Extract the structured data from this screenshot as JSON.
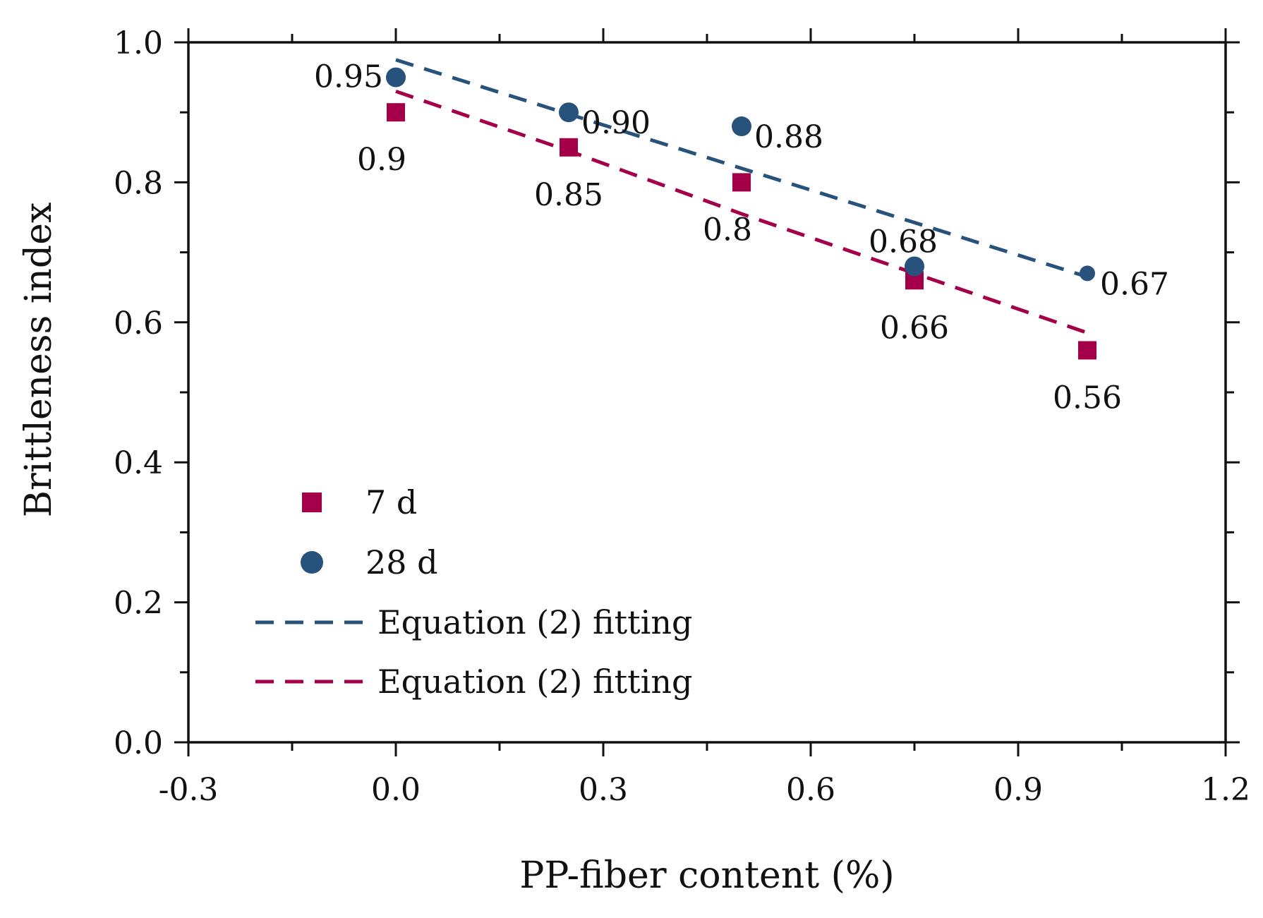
{
  "colors": {
    "series_7d": "#A4004A",
    "series_28d": "#26527B",
    "axis": "#111111"
  },
  "chart_data": {
    "type": "scatter",
    "title": "",
    "xlabel": "PP-fiber content (%)",
    "ylabel": "Brittleness index",
    "xlim": [
      -0.3,
      1.2
    ],
    "ylim": [
      0.0,
      1.0
    ],
    "x_ticks": [
      -0.3,
      0.0,
      0.3,
      0.6,
      0.9,
      1.2
    ],
    "x_tick_labels": [
      "-0.3",
      "0.0",
      "0.3",
      "0.6",
      "0.9",
      "1.2"
    ],
    "x_minor_ticks": [
      -0.15,
      0.15,
      0.45,
      0.75,
      1.05
    ],
    "y_ticks": [
      0.0,
      0.2,
      0.4,
      0.6,
      0.8,
      1.0
    ],
    "y_tick_labels": [
      "0.0",
      "0.2",
      "0.4",
      "0.6",
      "0.8",
      "1.0"
    ],
    "y_minor_ticks": [
      0.1,
      0.3,
      0.5,
      0.7,
      0.9
    ],
    "grid": false,
    "legend_position": "bottom-left",
    "series": [
      {
        "name": "7 d",
        "marker": "square",
        "color": "#A4004A",
        "x": [
          0.0,
          0.25,
          0.5,
          0.75,
          1.0
        ],
        "y": [
          0.9,
          0.85,
          0.8,
          0.66,
          0.56
        ],
        "labels": [
          "0.9",
          "0.85",
          "0.8",
          "0.66",
          "0.56"
        ],
        "label_placement": [
          "below-left",
          "below",
          "below-left",
          "below",
          "below"
        ]
      },
      {
        "name": "28 d",
        "marker": "circle",
        "color": "#26527B",
        "x": [
          0.0,
          0.25,
          0.5,
          0.75,
          1.0
        ],
        "y": [
          0.95,
          0.9,
          0.88,
          0.68,
          0.67
        ],
        "labels": [
          "0.95",
          "0.90",
          "0.88",
          "0.68",
          "0.67"
        ],
        "label_placement": [
          "left",
          "right",
          "right",
          "above",
          "right"
        ]
      }
    ],
    "fits": [
      {
        "name": "Equation (2) fitting",
        "color": "#26527B",
        "style": "dashed",
        "x": [
          0.0,
          1.0
        ],
        "y": [
          0.975,
          0.665
        ]
      },
      {
        "name": "Equation (2) fitting",
        "color": "#A4004A",
        "style": "dashed",
        "x": [
          0.0,
          0.25,
          0.5,
          0.75,
          1.0
        ],
        "y": [
          0.93,
          0.845,
          0.755,
          0.67,
          0.585
        ]
      }
    ],
    "legend": [
      {
        "label": "7 d",
        "kind": "square",
        "color": "#A4004A"
      },
      {
        "label": "28 d",
        "kind": "circle",
        "color": "#26527B"
      },
      {
        "label": "Equation (2) fitting",
        "kind": "dashed",
        "color": "#26527B"
      },
      {
        "label": "Equation (2) fitting",
        "kind": "dashed",
        "color": "#A4004A"
      }
    ]
  }
}
